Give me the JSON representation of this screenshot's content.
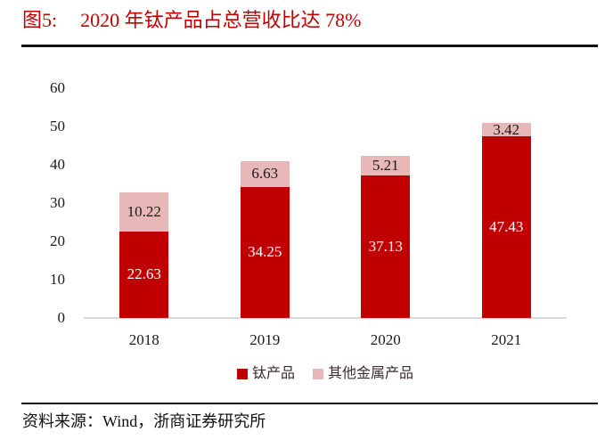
{
  "figure": {
    "label": "图5:",
    "title": "2020 年钛产品占总营收比达 78%"
  },
  "source_note": "资料来源：Wind，浙商证券研究所",
  "colors": {
    "title_red": "#c00000",
    "bar_red": "#c00000",
    "bar_pink": "#e7b8b7",
    "baseline_gray": "#d9d9d9",
    "rule_black": "#101010"
  },
  "chart_data": {
    "type": "bar",
    "stacked": true,
    "categories": [
      "2018",
      "2019",
      "2020",
      "2021"
    ],
    "series": [
      {
        "name": "钛产品",
        "values": [
          22.63,
          34.25,
          37.13,
          47.43
        ],
        "color": "#c00000",
        "label_color": "#ffffff"
      },
      {
        "name": "其他金属产品",
        "values": [
          10.22,
          6.63,
          5.21,
          3.42
        ],
        "color": "#e7b8b7",
        "label_color": "#1a1a1a"
      }
    ],
    "ylim": [
      0,
      60
    ],
    "yticks": [
      0,
      10,
      20,
      30,
      40,
      50,
      60
    ],
    "grid": false,
    "legend_position": "bottom-center",
    "data_labels": true
  }
}
